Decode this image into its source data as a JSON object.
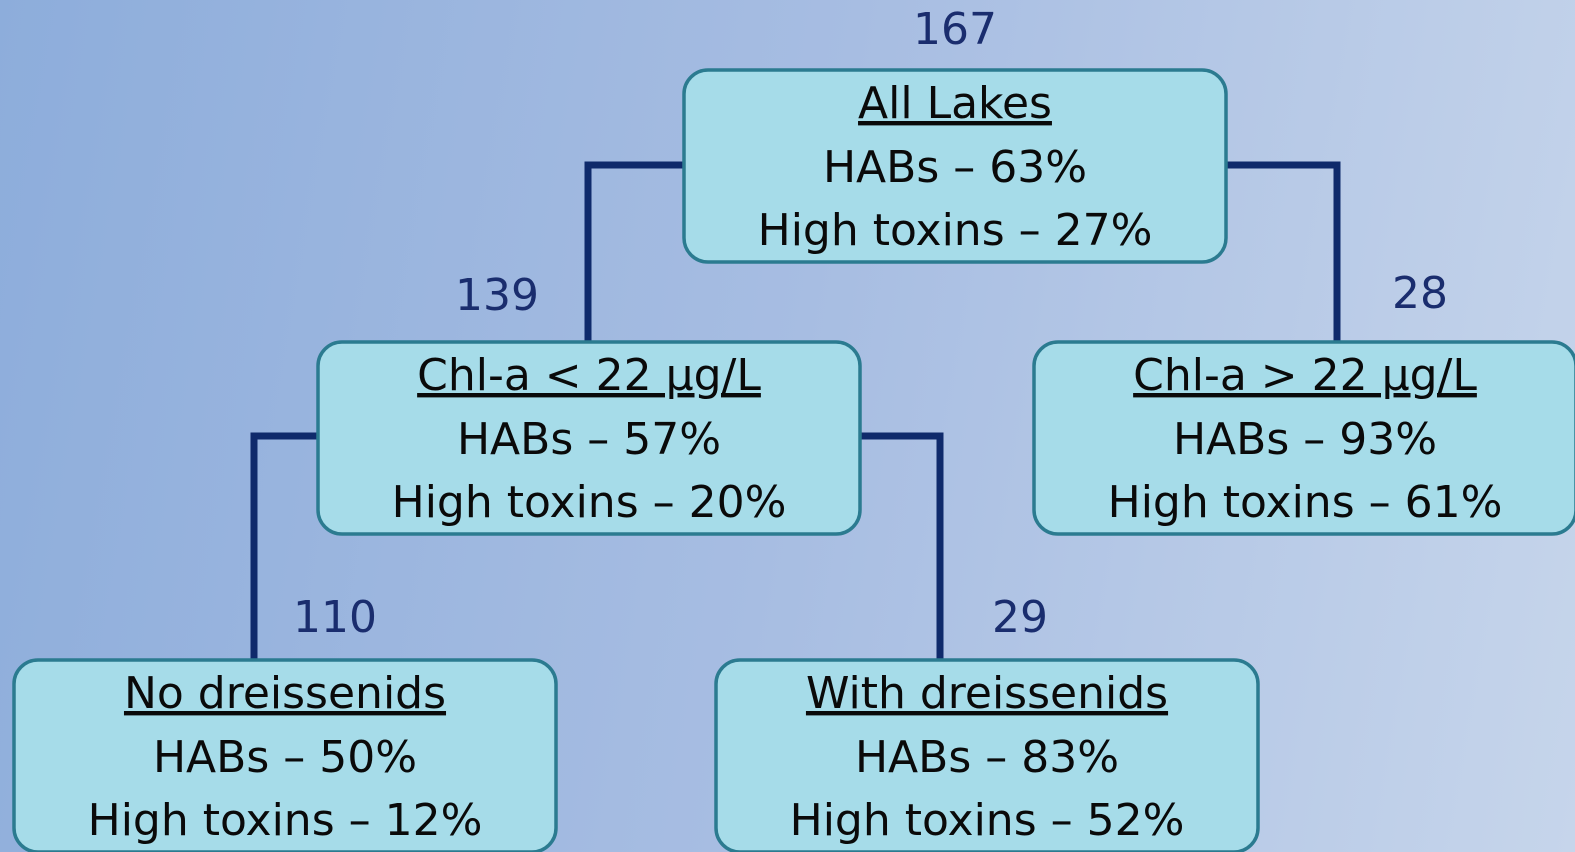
{
  "nodes": [
    {
      "count": 167,
      "title": "All Lakes",
      "habs": "HABs – 63%",
      "toxins": "High toxins – 27%"
    },
    {
      "count": 139,
      "title": "Chl-a < 22 µg/L",
      "habs": "HABs – 57%",
      "toxins": "High toxins – 20%"
    },
    {
      "count": 28,
      "title": "Chl-a > 22 µg/L",
      "habs": "HABs – 93%",
      "toxins": "High toxins – 61%"
    },
    {
      "count": 110,
      "title": "No dreissenids",
      "habs": "HABs – 50%",
      "toxins": "High toxins – 12%"
    },
    {
      "count": 29,
      "title": "With dreissenids",
      "habs": "HABs – 83%",
      "toxins": "High toxins – 52%"
    }
  ]
}
